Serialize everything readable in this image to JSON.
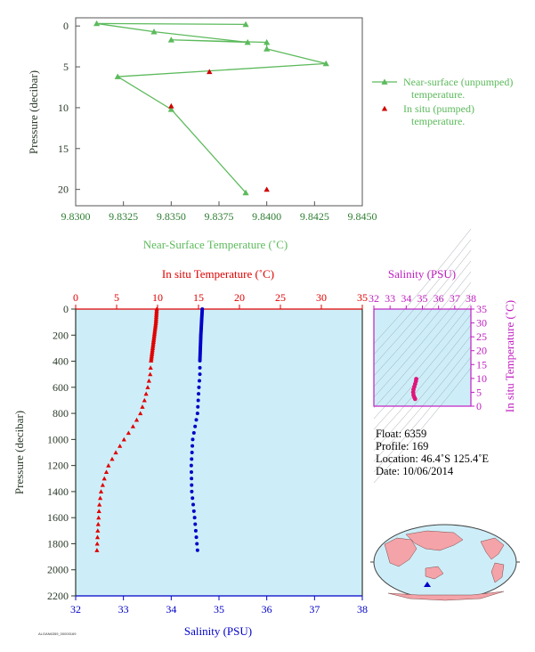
{
  "colors": {
    "top_series": "#5cba5c",
    "top_axis_text": "#2e7d32",
    "pumped": "#d00000",
    "temperature": "#e00000",
    "salinity": "#0000c8",
    "plot_bg": "#cdeef8",
    "ts_axis": "#c01ec0",
    "ts_points": "#e0157a",
    "dark_axis": "#2b3a2b"
  },
  "chart_data": [
    {
      "type": "scatter",
      "xlabel": "Near-Surface Temperature (˚C)",
      "ylabel": "Pressure (decibar)",
      "xlim": [
        9.83,
        9.845
      ],
      "ylim": [
        22,
        -1
      ],
      "x_ticks": [
        "9.8300",
        "9.8325",
        "9.8350",
        "9.8375",
        "9.8400",
        "9.8425",
        "9.8450"
      ],
      "x_tick_values": [
        9.83,
        9.8325,
        9.835,
        9.8375,
        9.84,
        9.8425,
        9.845
      ],
      "y_ticks": [
        "0",
        "5",
        "10",
        "15",
        "20"
      ],
      "y_tick_values": [
        0,
        5,
        10,
        15,
        20
      ],
      "series": [
        {
          "name": "Near-surface (unpumped) temperature.",
          "marker": "triangle-line",
          "x": [
            9.8389,
            9.8311,
            9.8341,
            9.839,
            9.835,
            9.84,
            9.84,
            9.8431,
            9.8322,
            9.835,
            9.8389
          ],
          "y": [
            -0.2,
            -0.3,
            0.7,
            2.0,
            1.7,
            2.0,
            2.8,
            4.6,
            6.2,
            10.2,
            20.4
          ]
        },
        {
          "name": "In situ (pumped) temperature.",
          "marker": "triangle",
          "x": [
            9.837,
            9.835,
            9.84
          ],
          "y": [
            5.6,
            9.8,
            20.0
          ]
        }
      ],
      "legend": {
        "position": "right",
        "entries": [
          [
            "Near-surface (unpumped)",
            "temperature."
          ],
          [
            "In situ (pumped)",
            "temperature."
          ]
        ]
      }
    },
    {
      "type": "scatter",
      "title_top": "In situ Temperature (˚C)",
      "xlabel_bottom": "Salinity (PSU)",
      "ylabel": "Pressure (decibar)",
      "temp_ticks": [
        "0",
        "5",
        "10",
        "15",
        "20",
        "25",
        "30",
        "35"
      ],
      "temp_tick_values": [
        0,
        5,
        10,
        15,
        20,
        25,
        30,
        35
      ],
      "sal_ticks": [
        "32",
        "33",
        "34",
        "35",
        "36",
        "37",
        "38"
      ],
      "sal_tick_values": [
        32,
        33,
        34,
        35,
        36,
        37,
        38
      ],
      "pres_ticks": [
        "0",
        "200",
        "400",
        "600",
        "800",
        "1000",
        "1200",
        "1400",
        "1600",
        "1800",
        "2000",
        "2200"
      ],
      "pres_tick_values": [
        0,
        200,
        400,
        600,
        800,
        1000,
        1200,
        1400,
        1600,
        1800,
        2000,
        2200
      ],
      "temp_range": [
        0,
        35
      ],
      "sal_range": [
        32,
        38
      ],
      "pres_range": [
        0,
        2200
      ],
      "series": [
        {
          "name": "temperature",
          "marker": "triangle",
          "profile": [
            [
              0,
              9.9
            ],
            [
              100,
              9.8
            ],
            [
              200,
              9.6
            ],
            [
              300,
              9.4
            ],
            [
              400,
              9.2
            ],
            [
              500,
              9.1
            ],
            [
              600,
              8.8
            ],
            [
              700,
              8.4
            ],
            [
              800,
              7.9
            ],
            [
              900,
              7.0
            ],
            [
              1000,
              5.9
            ],
            [
              1100,
              4.9
            ],
            [
              1200,
              4.0
            ],
            [
              1300,
              3.5
            ],
            [
              1400,
              3.1
            ],
            [
              1500,
              2.9
            ],
            [
              1600,
              2.8
            ],
            [
              1700,
              2.7
            ],
            [
              1850,
              2.6
            ]
          ]
        },
        {
          "name": "salinity",
          "marker": "dot",
          "profile": [
            [
              0,
              34.65
            ],
            [
              200,
              34.62
            ],
            [
              400,
              34.6
            ],
            [
              500,
              34.6
            ],
            [
              600,
              34.58
            ],
            [
              800,
              34.55
            ],
            [
              1000,
              34.45
            ],
            [
              1200,
              34.42
            ],
            [
              1400,
              34.43
            ],
            [
              1600,
              34.49
            ],
            [
              1850,
              34.55
            ]
          ]
        }
      ]
    },
    {
      "type": "scatter",
      "xlabel_top": "Salinity (PSU)",
      "ylabel_right": "In situ Temperature (˚C)",
      "x_ticks": [
        "32",
        "33",
        "34",
        "35",
        "36",
        "37",
        "38"
      ],
      "x_tick_values": [
        32,
        33,
        34,
        35,
        36,
        37,
        38
      ],
      "y_ticks": [
        "0",
        "5",
        "10",
        "15",
        "20",
        "25",
        "30",
        "35"
      ],
      "y_tick_values": [
        0,
        5,
        10,
        15,
        20,
        25,
        30,
        35
      ],
      "xlim": [
        32,
        38
      ],
      "ylim": [
        0,
        35
      ],
      "points_salinity_temperature": [
        [
          34.55,
          2.6
        ],
        [
          34.5,
          3.2
        ],
        [
          34.45,
          4.0
        ],
        [
          34.43,
          5.0
        ],
        [
          34.45,
          6.0
        ],
        [
          34.5,
          7.0
        ],
        [
          34.55,
          8.0
        ],
        [
          34.6,
          9.0
        ],
        [
          34.62,
          9.8
        ]
      ]
    }
  ],
  "float_info": {
    "float": "Float:  6359",
    "profile": "Profile:  169",
    "location": "Location:  46.4˚S  125.4˚E",
    "date": "Date:  10/06/2014"
  },
  "map": {
    "location_marker": "float-location-marker"
  },
  "footnote": "ALGAN6359_00000169"
}
